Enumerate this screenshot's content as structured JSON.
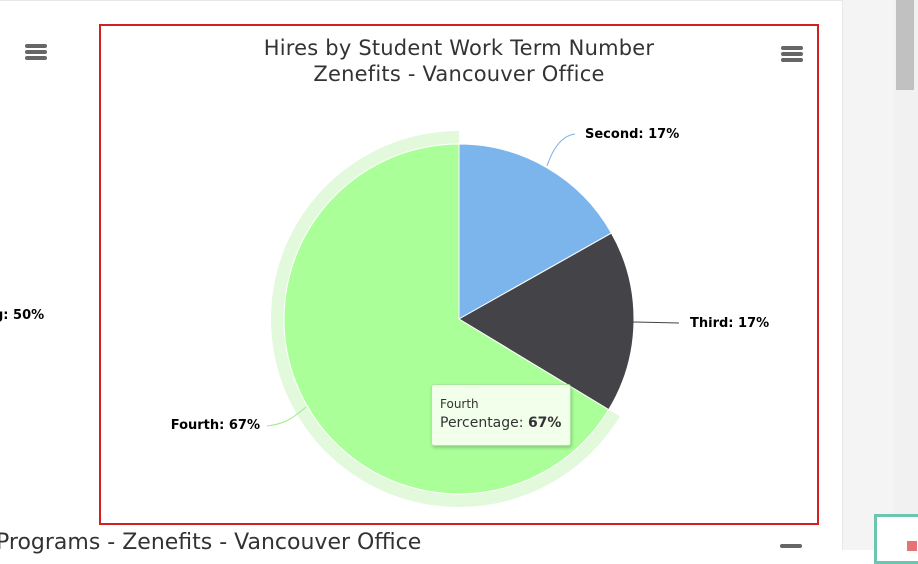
{
  "chart_data": {
    "type": "pie",
    "title": "Hires by Student Work Term Number",
    "subtitle": "Zenefits - Vancouver Office",
    "slices": [
      {
        "name": "Second",
        "value": 17,
        "label": "Second: 17%",
        "color": "#7cb5ec"
      },
      {
        "name": "Third",
        "value": 17,
        "label": "Third: 17%",
        "color": "#434348"
      },
      {
        "name": "Fourth",
        "value": 67,
        "label": "Fourth: 67%",
        "color": "#aaff99",
        "hovered": true
      }
    ],
    "hover_halo_color": "#e2f9dc"
  },
  "tooltip": {
    "header": "Fourth",
    "label": "Percentage: ",
    "value": "67%"
  },
  "left_partial": {
    "label": "g: 50%"
  },
  "bottom_partial": {
    "title": "Programs - Zenefits - Vancouver Office"
  },
  "icons": {
    "menu": "hamburger-menu-icon"
  }
}
